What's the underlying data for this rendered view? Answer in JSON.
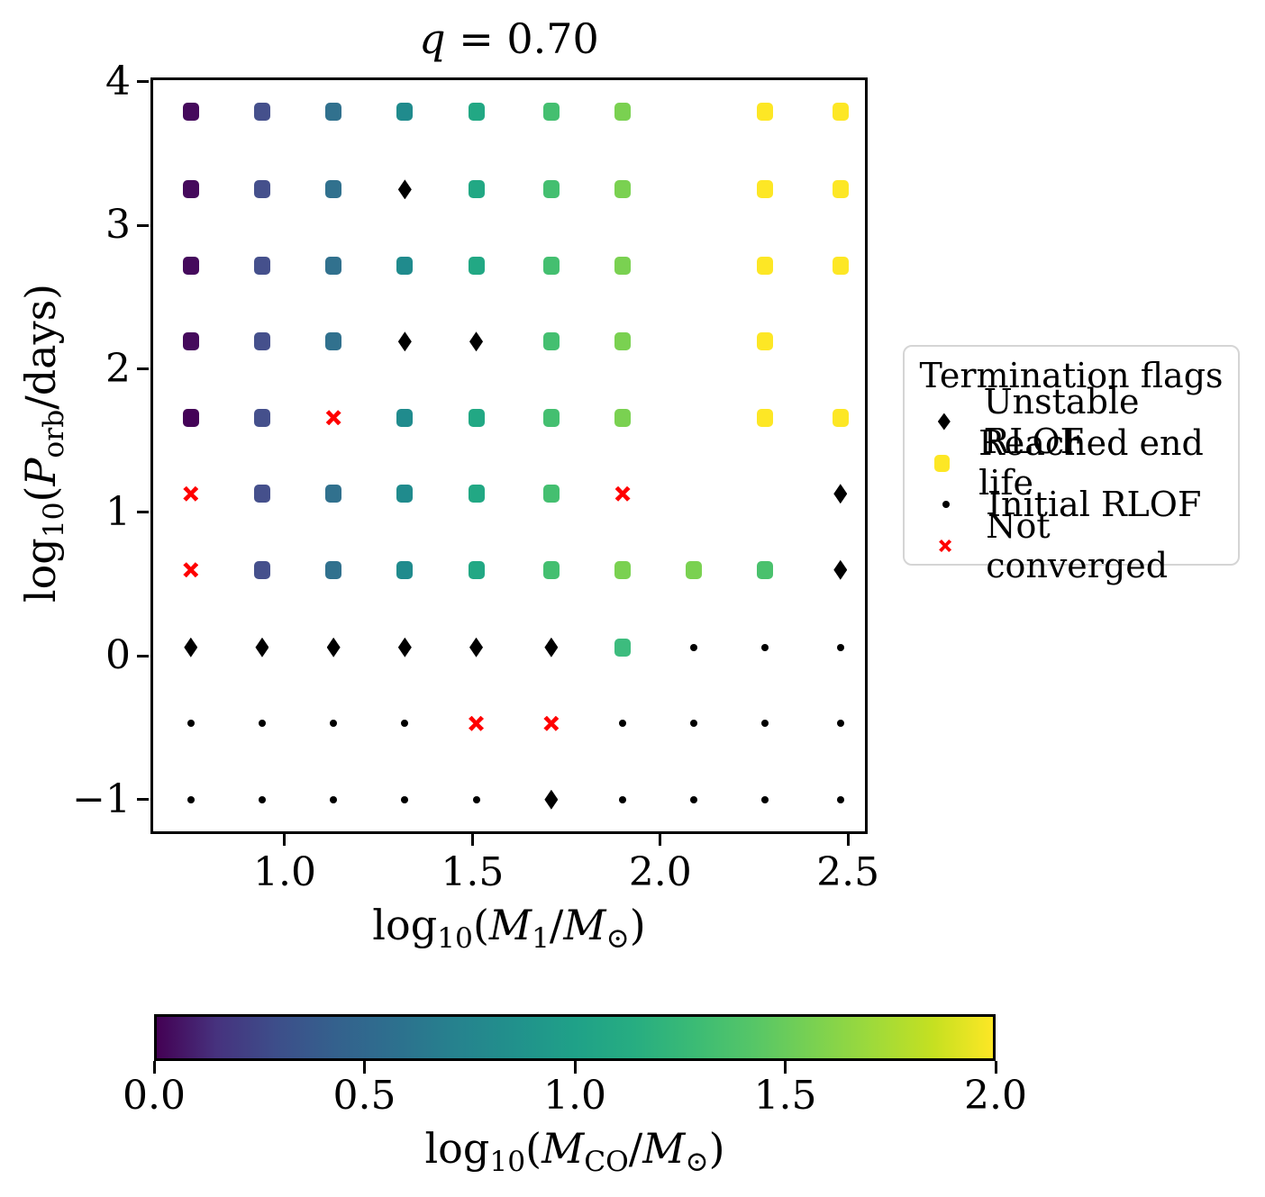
{
  "figure": {
    "title_var": "q",
    "title_rest": " = 0.70"
  },
  "axes": {
    "ylabel": {
      "log": "log",
      "logsub": "10",
      "open": "(",
      "var": "P",
      "varsub": "orb",
      "close": "/days)"
    },
    "xlabel": {
      "log": "log",
      "logsub": "10",
      "open": "(",
      "var": "M",
      "varsub": "1",
      "slash": "/",
      "var2": "M",
      "var2sub": "⊙",
      "close": ")"
    },
    "yticks": [
      {
        "v": 4,
        "label": "4"
      },
      {
        "v": 3,
        "label": "3"
      },
      {
        "v": 2,
        "label": "2"
      },
      {
        "v": 1,
        "label": "1"
      },
      {
        "v": 0,
        "label": "0"
      },
      {
        "v": -1,
        "label": "−1"
      }
    ],
    "xticks": [
      {
        "v": 1.0,
        "label": "1.0"
      },
      {
        "v": 1.5,
        "label": "1.5"
      },
      {
        "v": 2.0,
        "label": "2.0"
      },
      {
        "v": 2.5,
        "label": "2.5"
      }
    ]
  },
  "legend": {
    "title": "Termination flags",
    "items": [
      {
        "marker": "diamond",
        "color": "#000000",
        "label": "Unstable RLOF"
      },
      {
        "marker": "square",
        "color": "#fde725",
        "label": "Reached end life"
      },
      {
        "marker": "dot",
        "color": "#000000",
        "label": "Initial RLOF"
      },
      {
        "marker": "x",
        "color": "#ff0000",
        "label": "Not converged"
      }
    ]
  },
  "colorbar": {
    "label": {
      "log": "log",
      "logsub": "10",
      "open": "(",
      "var": "M",
      "varsub": "CO",
      "slash": "/",
      "var2": "M",
      "var2sub": "⊙",
      "close": ")"
    },
    "min": 0.0,
    "max": 2.0,
    "ticks": [
      {
        "v": 0.0,
        "label": "0.0"
      },
      {
        "v": 0.5,
        "label": "0.5"
      },
      {
        "v": 1.0,
        "label": "1.0"
      },
      {
        "v": 1.5,
        "label": "1.5"
      },
      {
        "v": 2.0,
        "label": "2.0"
      }
    ],
    "colormap": "viridis",
    "gradient": [
      "#440154",
      "#46327e",
      "#3d4e8a",
      "#34618d",
      "#2d708e",
      "#26828e",
      "#21918c",
      "#1fa188",
      "#27ad81",
      "#3bbb75",
      "#56c667",
      "#7ad151",
      "#9fda3a",
      "#c5e021",
      "#fde725"
    ]
  },
  "chart_data": {
    "type": "scatter",
    "title": "q = 0.70",
    "xlabel": "log10(M1/Msun)",
    "ylabel": "log10(Porb/days)",
    "colorbar_label": "log10(MCO/Msun)",
    "xlim": [
      0.6425,
      2.5525
    ],
    "ylim": [
      -1.24,
      4.03
    ],
    "x_grid_logM1": [
      0.75,
      0.94,
      1.13,
      1.32,
      1.51,
      1.71,
      1.9,
      2.09,
      2.28,
      2.48
    ],
    "y_grid_logPorb": [
      3.79,
      3.25,
      2.72,
      2.19,
      1.66,
      1.13,
      0.6,
      0.06,
      -0.47,
      -1.0
    ],
    "marker_meanings": {
      "sq": "terminated model colored by log10(MCO/Msun); yellow #fde725 = Reached end life",
      "d": "Unstable RLOF",
      "dot": "Initial RLOF",
      "x": "Not converged"
    },
    "points": [
      [
        0.75,
        3.79,
        "sq",
        "#450a5c"
      ],
      [
        0.94,
        3.79,
        "sq",
        "#45508c"
      ],
      [
        1.13,
        3.79,
        "sq",
        "#31718e"
      ],
      [
        1.32,
        3.79,
        "sq",
        "#208b8d"
      ],
      [
        1.51,
        3.79,
        "sq",
        "#22a884"
      ],
      [
        1.71,
        3.79,
        "sq",
        "#44bf70"
      ],
      [
        1.9,
        3.79,
        "sq",
        "#7ad151"
      ],
      [
        2.28,
        3.79,
        "sq",
        "#fde725"
      ],
      [
        2.48,
        3.79,
        "sq",
        "#fde725"
      ],
      [
        0.75,
        3.25,
        "sq",
        "#450a5c"
      ],
      [
        0.94,
        3.25,
        "sq",
        "#45508c"
      ],
      [
        1.13,
        3.25,
        "sq",
        "#31718e"
      ],
      [
        1.32,
        3.25,
        "d",
        "#000000"
      ],
      [
        1.51,
        3.25,
        "sq",
        "#22a884"
      ],
      [
        1.71,
        3.25,
        "sq",
        "#44bf70"
      ],
      [
        1.9,
        3.25,
        "sq",
        "#7ad151"
      ],
      [
        2.28,
        3.25,
        "sq",
        "#fde725"
      ],
      [
        2.48,
        3.25,
        "sq",
        "#fde725"
      ],
      [
        0.75,
        2.72,
        "sq",
        "#450a5c"
      ],
      [
        0.94,
        2.72,
        "sq",
        "#45508c"
      ],
      [
        1.13,
        2.72,
        "sq",
        "#31718e"
      ],
      [
        1.32,
        2.72,
        "sq",
        "#208b8d"
      ],
      [
        1.51,
        2.72,
        "sq",
        "#22a884"
      ],
      [
        1.71,
        2.72,
        "sq",
        "#44bf70"
      ],
      [
        1.9,
        2.72,
        "sq",
        "#7ad151"
      ],
      [
        2.28,
        2.72,
        "sq",
        "#fde725"
      ],
      [
        2.48,
        2.72,
        "sq",
        "#fde725"
      ],
      [
        0.75,
        2.19,
        "sq",
        "#450a5c"
      ],
      [
        0.94,
        2.19,
        "sq",
        "#45508c"
      ],
      [
        1.13,
        2.19,
        "sq",
        "#31718e"
      ],
      [
        1.32,
        2.19,
        "d",
        "#000000"
      ],
      [
        1.51,
        2.19,
        "d",
        "#000000"
      ],
      [
        1.71,
        2.19,
        "sq",
        "#44bf70"
      ],
      [
        1.9,
        2.19,
        "sq",
        "#7ad151"
      ],
      [
        2.28,
        2.19,
        "sq",
        "#fde725"
      ],
      [
        0.75,
        1.66,
        "sq",
        "#440357"
      ],
      [
        0.94,
        1.66,
        "sq",
        "#45508c"
      ],
      [
        1.13,
        1.66,
        "x",
        "#ff0000"
      ],
      [
        1.32,
        1.66,
        "sq",
        "#208b8d"
      ],
      [
        1.51,
        1.66,
        "sq",
        "#22a884"
      ],
      [
        1.71,
        1.66,
        "sq",
        "#44bf70"
      ],
      [
        1.9,
        1.66,
        "sq",
        "#7ad151"
      ],
      [
        2.28,
        1.66,
        "sq",
        "#fde725"
      ],
      [
        2.48,
        1.66,
        "sq",
        "#fde725"
      ],
      [
        0.75,
        1.13,
        "x",
        "#ff0000"
      ],
      [
        0.94,
        1.13,
        "sq",
        "#45508c"
      ],
      [
        1.13,
        1.13,
        "sq",
        "#31718e"
      ],
      [
        1.32,
        1.13,
        "sq",
        "#208b8d"
      ],
      [
        1.51,
        1.13,
        "sq",
        "#22a884"
      ],
      [
        1.71,
        1.13,
        "sq",
        "#44bf70"
      ],
      [
        1.9,
        1.13,
        "x",
        "#ff0000"
      ],
      [
        2.48,
        1.13,
        "d",
        "#000000"
      ],
      [
        0.75,
        0.6,
        "x",
        "#ff0000"
      ],
      [
        0.94,
        0.6,
        "sq",
        "#45508c"
      ],
      [
        1.13,
        0.6,
        "sq",
        "#31718e"
      ],
      [
        1.32,
        0.6,
        "sq",
        "#208b8d"
      ],
      [
        1.51,
        0.6,
        "sq",
        "#22a884"
      ],
      [
        1.71,
        0.6,
        "sq",
        "#44bf70"
      ],
      [
        1.9,
        0.6,
        "sq",
        "#7ad151"
      ],
      [
        2.09,
        0.6,
        "sq",
        "#7ad151"
      ],
      [
        2.28,
        0.6,
        "sq",
        "#4ac16d"
      ],
      [
        2.48,
        0.6,
        "d",
        "#000000"
      ],
      [
        0.75,
        0.06,
        "d",
        "#000000"
      ],
      [
        0.94,
        0.06,
        "d",
        "#000000"
      ],
      [
        1.13,
        0.06,
        "d",
        "#000000"
      ],
      [
        1.32,
        0.06,
        "d",
        "#000000"
      ],
      [
        1.51,
        0.06,
        "d",
        "#000000"
      ],
      [
        1.71,
        0.06,
        "d",
        "#000000"
      ],
      [
        1.9,
        0.06,
        "sq",
        "#3dbc7e"
      ],
      [
        2.09,
        0.06,
        "dot",
        "#000000"
      ],
      [
        2.28,
        0.06,
        "dot",
        "#000000"
      ],
      [
        2.48,
        0.06,
        "dot",
        "#000000"
      ],
      [
        0.75,
        -0.47,
        "dot",
        "#000000"
      ],
      [
        0.94,
        -0.47,
        "dot",
        "#000000"
      ],
      [
        1.13,
        -0.47,
        "dot",
        "#000000"
      ],
      [
        1.32,
        -0.47,
        "dot",
        "#000000"
      ],
      [
        1.51,
        -0.47,
        "x",
        "#ff0000"
      ],
      [
        1.71,
        -0.47,
        "x",
        "#ff0000"
      ],
      [
        1.9,
        -0.47,
        "dot",
        "#000000"
      ],
      [
        2.09,
        -0.47,
        "dot",
        "#000000"
      ],
      [
        2.28,
        -0.47,
        "dot",
        "#000000"
      ],
      [
        2.48,
        -0.47,
        "dot",
        "#000000"
      ],
      [
        0.75,
        -1.0,
        "dot",
        "#000000"
      ],
      [
        0.94,
        -1.0,
        "dot",
        "#000000"
      ],
      [
        1.13,
        -1.0,
        "dot",
        "#000000"
      ],
      [
        1.32,
        -1.0,
        "dot",
        "#000000"
      ],
      [
        1.51,
        -1.0,
        "dot",
        "#000000"
      ],
      [
        1.71,
        -1.0,
        "d",
        "#000000"
      ],
      [
        1.9,
        -1.0,
        "dot",
        "#000000"
      ],
      [
        2.09,
        -1.0,
        "dot",
        "#000000"
      ],
      [
        2.28,
        -1.0,
        "dot",
        "#000000"
      ],
      [
        2.48,
        -1.0,
        "dot",
        "#000000"
      ]
    ]
  }
}
